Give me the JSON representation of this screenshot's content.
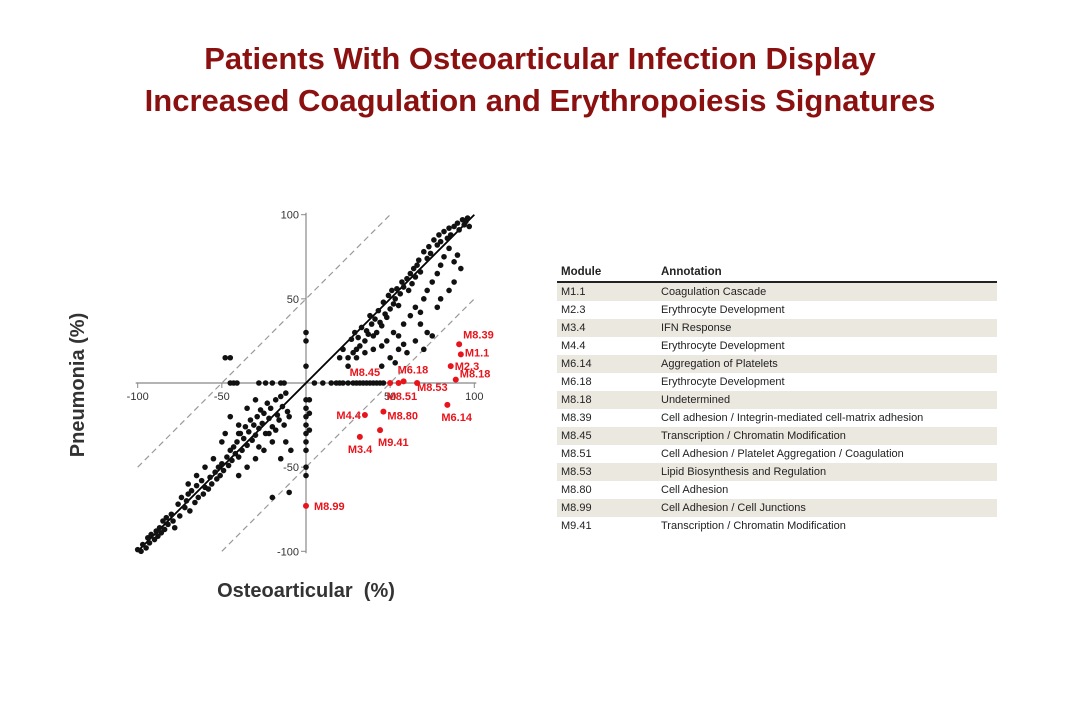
{
  "title_lines": [
    "Patients With Osteoarticular Infection Display",
    "Increased Coagulation and Erythropoiesis Signatures"
  ],
  "colors": {
    "title": "#8b1010",
    "highlight": "#e8141b",
    "points": "#111111",
    "table_stripe": "#ebe8e0"
  },
  "chart_data": {
    "type": "scatter",
    "title": "",
    "xlabel": "Osteoarticular  (%)",
    "ylabel": "Pneumonia (%)",
    "xlim": [
      -100,
      100
    ],
    "ylim": [
      -100,
      100
    ],
    "x_ticks": [
      -100,
      -50,
      50,
      100
    ],
    "y_ticks": [
      100,
      50,
      -50,
      -100
    ],
    "tick_labels_x": [
      "-100",
      "-50",
      "50",
      "100"
    ],
    "tick_labels_y": [
      "100",
      "50",
      "-50",
      "-100"
    ],
    "reference_lines": [
      {
        "name": "identity",
        "style": "solid",
        "slope": 1,
        "intercept": 0
      },
      {
        "name": "upper",
        "style": "dashed",
        "slope": 1,
        "intercept": 50
      },
      {
        "name": "lower",
        "style": "dashed",
        "slope": 1,
        "intercept": -50
      }
    ],
    "grid": false,
    "highlighted": [
      {
        "label": "M8.39",
        "x": 91,
        "y": 23
      },
      {
        "label": "M1.1",
        "x": 92,
        "y": 17
      },
      {
        "label": "M2.3",
        "x": 86,
        "y": 10
      },
      {
        "label": "M8.18",
        "x": 89,
        "y": 2
      },
      {
        "label": "M8.53",
        "x": 66,
        "y": 0
      },
      {
        "label": "M6.18",
        "x": 58,
        "y": 1
      },
      {
        "label": "M8.45",
        "x": 50,
        "y": 0
      },
      {
        "label": "M8.51",
        "x": 55,
        "y": 0
      },
      {
        "label": "M6.14",
        "x": 84,
        "y": -13
      },
      {
        "label": "M4.4",
        "x": 35,
        "y": -19
      },
      {
        "label": "M8.80",
        "x": 46,
        "y": -17
      },
      {
        "label": "M9.41",
        "x": 44,
        "y": -28
      },
      {
        "label": "M3.4",
        "x": 32,
        "y": -32
      },
      {
        "label": "M8.99",
        "x": 0,
        "y": -73
      }
    ],
    "points": [
      [
        -100,
        -99
      ],
      [
        -98,
        -100
      ],
      [
        -97,
        -96
      ],
      [
        -95,
        -98
      ],
      [
        -94,
        -92
      ],
      [
        -93,
        -95
      ],
      [
        -92,
        -90
      ],
      [
        -90,
        -93
      ],
      [
        -89,
        -88
      ],
      [
        -88,
        -91
      ],
      [
        -87,
        -86
      ],
      [
        -86,
        -89
      ],
      [
        -85,
        -82
      ],
      [
        -84,
        -87
      ],
      [
        -83,
        -80
      ],
      [
        -82,
        -84
      ],
      [
        -80,
        -78
      ],
      [
        -79,
        -82
      ],
      [
        -78,
        -86
      ],
      [
        -76,
        -72
      ],
      [
        -75,
        -79
      ],
      [
        -74,
        -68
      ],
      [
        -72,
        -74
      ],
      [
        -71,
        -70
      ],
      [
        -70,
        -66
      ],
      [
        -69,
        -76
      ],
      [
        -68,
        -64
      ],
      [
        -66,
        -71
      ],
      [
        -65,
        -61
      ],
      [
        -64,
        -68
      ],
      [
        -62,
        -58
      ],
      [
        -61,
        -66
      ],
      [
        -60,
        -62
      ],
      [
        -58,
        -63
      ],
      [
        -57,
        -56
      ],
      [
        -56,
        -60
      ],
      [
        -54,
        -53
      ],
      [
        -53,
        -57
      ],
      [
        -52,
        -50
      ],
      [
        -51,
        -55
      ],
      [
        -50,
        -48
      ],
      [
        -49,
        -52
      ],
      [
        -47,
        -44
      ],
      [
        -46,
        -49
      ],
      [
        -45,
        -40
      ],
      [
        -44,
        -46
      ],
      [
        -43,
        -38
      ],
      [
        -42,
        -42
      ],
      [
        -41,
        -35
      ],
      [
        -40,
        -44
      ],
      [
        -39,
        -30
      ],
      [
        -38,
        -40
      ],
      [
        -37,
        -33
      ],
      [
        -36,
        -26
      ],
      [
        -35,
        -37
      ],
      [
        -34,
        -29
      ],
      [
        -33,
        -22
      ],
      [
        -32,
        -34
      ],
      [
        -31,
        -25
      ],
      [
        -30,
        -31
      ],
      [
        -29,
        -20
      ],
      [
        -28,
        -27
      ],
      [
        -27,
        -16
      ],
      [
        -26,
        -24
      ],
      [
        -25,
        -18
      ],
      [
        -24,
        -30
      ],
      [
        -23,
        -12
      ],
      [
        -22,
        -21
      ],
      [
        -21,
        -15
      ],
      [
        -20,
        -26
      ],
      [
        -18,
        -10
      ],
      [
        -17,
        -19
      ],
      [
        -16,
        -22
      ],
      [
        -15,
        -8
      ],
      [
        -14,
        -14
      ],
      [
        -13,
        -25
      ],
      [
        -12,
        -6
      ],
      [
        -11,
        -17
      ],
      [
        -10,
        -20
      ],
      [
        -9,
        -40
      ],
      [
        -45,
        -20
      ],
      [
        -40,
        -25
      ],
      [
        -48,
        -30
      ],
      [
        -30,
        -10
      ],
      [
        -20,
        -35
      ],
      [
        -25,
        -40
      ],
      [
        -35,
        -15
      ],
      [
        -15,
        -45
      ],
      [
        -55,
        -45
      ],
      [
        -60,
        -50
      ],
      [
        -65,
        -55
      ],
      [
        -70,
        -60
      ],
      [
        -30,
        -45
      ],
      [
        -35,
        -50
      ],
      [
        -22,
        -30
      ],
      [
        -18,
        -28
      ],
      [
        -12,
        -35
      ],
      [
        -50,
        -35
      ],
      [
        -40,
        -30
      ],
      [
        -28,
        -38
      ],
      [
        -45,
        15
      ],
      [
        -48,
        15
      ],
      [
        -28,
        0
      ],
      [
        -24,
        0
      ],
      [
        -20,
        0
      ],
      [
        -15,
        0
      ],
      [
        -13,
        0
      ],
      [
        -45,
        0
      ],
      [
        -43,
        0
      ],
      [
        -41,
        0
      ],
      [
        -10,
        -65
      ],
      [
        -20,
        -68
      ],
      [
        -40,
        -55
      ],
      [
        0,
        30
      ],
      [
        0,
        25
      ],
      [
        0,
        10
      ],
      [
        0,
        -10
      ],
      [
        0,
        -15
      ],
      [
        0,
        -20
      ],
      [
        0,
        -25
      ],
      [
        0,
        -30
      ],
      [
        0,
        -35
      ],
      [
        0,
        -40
      ],
      [
        0,
        -50
      ],
      [
        0,
        -55
      ],
      [
        2,
        -10
      ],
      [
        2,
        -18
      ],
      [
        2,
        -28
      ],
      [
        5,
        0
      ],
      [
        10,
        0
      ],
      [
        15,
        0
      ],
      [
        18,
        0
      ],
      [
        20,
        0
      ],
      [
        22,
        0
      ],
      [
        25,
        0
      ],
      [
        28,
        0
      ],
      [
        30,
        0
      ],
      [
        32,
        0
      ],
      [
        34,
        0
      ],
      [
        36,
        0
      ],
      [
        38,
        0
      ],
      [
        40,
        0
      ],
      [
        42,
        0
      ],
      [
        44,
        0
      ],
      [
        46,
        0
      ],
      [
        28,
        18
      ],
      [
        30,
        20
      ],
      [
        25,
        15
      ],
      [
        32,
        22
      ],
      [
        27,
        26
      ],
      [
        29,
        30
      ],
      [
        31,
        27
      ],
      [
        33,
        33
      ],
      [
        35,
        25
      ],
      [
        36,
        31
      ],
      [
        37,
        29
      ],
      [
        38,
        40
      ],
      [
        39,
        35
      ],
      [
        40,
        28
      ],
      [
        41,
        38
      ],
      [
        42,
        30
      ],
      [
        43,
        43
      ],
      [
        44,
        36
      ],
      [
        45,
        34
      ],
      [
        46,
        48
      ],
      [
        47,
        41
      ],
      [
        48,
        39
      ],
      [
        49,
        52
      ],
      [
        50,
        44
      ],
      [
        51,
        55
      ],
      [
        52,
        47
      ],
      [
        53,
        50
      ],
      [
        54,
        56
      ],
      [
        55,
        46
      ],
      [
        56,
        53
      ],
      [
        57,
        60
      ],
      [
        58,
        57
      ],
      [
        60,
        62
      ],
      [
        61,
        55
      ],
      [
        62,
        65
      ],
      [
        63,
        59
      ],
      [
        64,
        68
      ],
      [
        65,
        63
      ],
      [
        66,
        70
      ],
      [
        67,
        73
      ],
      [
        68,
        66
      ],
      [
        70,
        78
      ],
      [
        72,
        74
      ],
      [
        73,
        81
      ],
      [
        74,
        77
      ],
      [
        76,
        85
      ],
      [
        78,
        82
      ],
      [
        79,
        88
      ],
      [
        80,
        84
      ],
      [
        82,
        90
      ],
      [
        84,
        86
      ],
      [
        85,
        92
      ],
      [
        86,
        88
      ],
      [
        88,
        93
      ],
      [
        90,
        95
      ],
      [
        91,
        91
      ],
      [
        93,
        97
      ],
      [
        94,
        94
      ],
      [
        95,
        96
      ],
      [
        96,
        98
      ],
      [
        97,
        93
      ],
      [
        25,
        10
      ],
      [
        30,
        15
      ],
      [
        35,
        18
      ],
      [
        40,
        20
      ],
      [
        45,
        22
      ],
      [
        48,
        25
      ],
      [
        52,
        30
      ],
      [
        55,
        28
      ],
      [
        58,
        35
      ],
      [
        62,
        40
      ],
      [
        65,
        45
      ],
      [
        68,
        42
      ],
      [
        70,
        50
      ],
      [
        72,
        55
      ],
      [
        75,
        60
      ],
      [
        78,
        65
      ],
      [
        80,
        70
      ],
      [
        82,
        75
      ],
      [
        85,
        80
      ],
      [
        88,
        72
      ],
      [
        90,
        76
      ],
      [
        92,
        68
      ],
      [
        20,
        15
      ],
      [
        22,
        20
      ],
      [
        55,
        20
      ],
      [
        58,
        23
      ],
      [
        60,
        18
      ],
      [
        45,
        10
      ],
      [
        50,
        15
      ],
      [
        53,
        12
      ],
      [
        70,
        20
      ],
      [
        72,
        30
      ],
      [
        75,
        28
      ],
      [
        65,
        25
      ],
      [
        68,
        35
      ],
      [
        78,
        45
      ],
      [
        80,
        50
      ],
      [
        85,
        55
      ],
      [
        88,
        60
      ]
    ]
  },
  "table": {
    "headers": [
      "Module",
      "Annotation"
    ],
    "rows": [
      [
        "M1.1",
        "Coagulation Cascade"
      ],
      [
        "M2.3",
        "Erythrocyte Development"
      ],
      [
        "M3.4",
        "IFN Response"
      ],
      [
        "M4.4",
        "Erythrocyte Development"
      ],
      [
        "M6.14",
        "Aggregation of Platelets"
      ],
      [
        "M6.18",
        "Erythrocyte Development"
      ],
      [
        "M8.18",
        "Undetermined"
      ],
      [
        "M8.39",
        "Cell adhesion / Integrin-mediated cell-matrix adhesion"
      ],
      [
        "M8.45",
        "Transcription / Chromatin Modification"
      ],
      [
        "M8.51",
        "Cell Adhesion / Platelet Aggregation / Coagulation"
      ],
      [
        "M8.53",
        "Lipid Biosynthesis and Regulation"
      ],
      [
        "M8.80",
        "Cell Adhesion"
      ],
      [
        "M8.99",
        "Cell Adhesion / Cell Junctions"
      ],
      [
        "M9.41",
        "Transcription / Chromatin Modification"
      ]
    ]
  }
}
